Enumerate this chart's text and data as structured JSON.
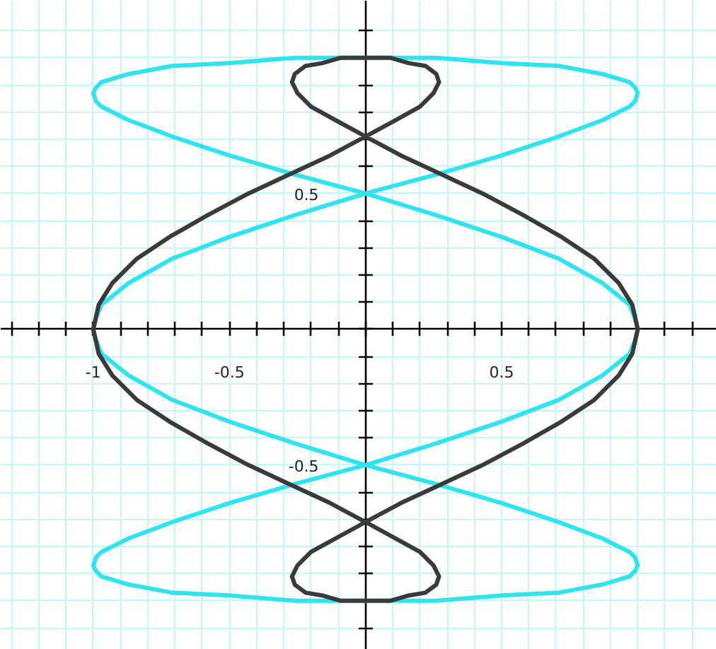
{
  "chart_data": {
    "type": "line",
    "xlim": [
      -1.34,
      1.29
    ],
    "ylim": [
      -1.18,
      1.21
    ],
    "xticks": [
      {
        "value": -1.3,
        "label": null
      },
      {
        "value": -1.2,
        "label": null
      },
      {
        "value": -1.1,
        "label": null
      },
      -1,
      {
        "value": -0.9,
        "label": null
      },
      {
        "value": -0.8,
        "label": null
      },
      {
        "value": -0.7,
        "label": null
      },
      {
        "value": -0.6,
        "label": null
      },
      -0.5,
      {
        "value": -0.4,
        "label": null
      },
      {
        "value": -0.3,
        "label": null
      },
      {
        "value": -0.2,
        "label": null
      },
      {
        "value": -0.1,
        "label": null
      },
      {
        "value": 0,
        "label": null
      },
      {
        "value": 0.1,
        "label": null
      },
      {
        "value": 0.2,
        "label": null
      },
      {
        "value": 0.3,
        "label": null
      },
      {
        "value": 0.4,
        "label": null
      },
      0.5,
      {
        "value": 0.6,
        "label": null
      },
      {
        "value": 0.7,
        "label": null
      },
      {
        "value": 0.8,
        "label": null
      },
      {
        "value": 0.9,
        "label": null
      },
      {
        "value": 1,
        "label": null
      },
      {
        "value": 1.1,
        "label": null
      },
      {
        "value": 1.2,
        "label": null
      }
    ],
    "yticks": [
      {
        "value": -1.1,
        "label": null
      },
      {
        "value": -1,
        "label": null
      },
      {
        "value": -0.9,
        "label": null
      },
      {
        "value": -0.8,
        "label": null
      },
      {
        "value": -0.7,
        "label": null
      },
      {
        "value": -0.6,
        "label": null
      },
      -0.5,
      {
        "value": -0.4,
        "label": null
      },
      {
        "value": -0.3,
        "label": null
      },
      {
        "value": -0.2,
        "label": null
      },
      {
        "value": -0.1,
        "label": null
      },
      {
        "value": 0,
        "label": null
      },
      {
        "value": 0.1,
        "label": null
      },
      {
        "value": 0.2,
        "label": null
      },
      {
        "value": 0.3,
        "label": null
      },
      {
        "value": 0.4,
        "label": null
      },
      0.5,
      {
        "value": 0.6,
        "label": null
      },
      {
        "value": 0.7,
        "label": null
      },
      {
        "value": 0.8,
        "label": null
      },
      {
        "value": 0.9,
        "label": null
      },
      {
        "value": 1,
        "label": null
      },
      {
        "value": 1.1,
        "label": null
      }
    ],
    "grid": true,
    "series": [
      {
        "color": "#2fe4ef",
        "x": [
          -1,
          -0.99,
          -0.97,
          -0.87,
          -0.71,
          -0.5,
          -0.26,
          0,
          0.26,
          0.5,
          0.71,
          0.87,
          0.97,
          0.99,
          1,
          null,
          1,
          0.99,
          0.97,
          0.87,
          0.71,
          0.5,
          0.26,
          0,
          -0.26,
          -0.5,
          -0.71,
          -0.87,
          -0.97,
          -0.99,
          -1,
          null,
          -1,
          -0.99,
          -0.97,
          -0.87,
          -0.71,
          -0.5,
          -0.26,
          0,
          0.26,
          0.5,
          0.71,
          0.87,
          0.97,
          0.99,
          1,
          null,
          1,
          0.99,
          0.97,
          0.87,
          0.71,
          0.5,
          0.26,
          0,
          -0.26,
          -0.5,
          -0.71,
          -0.87,
          -0.97,
          -0.99,
          -1,
          null,
          -1,
          -0.99,
          -0.97,
          -0.87,
          -0.71,
          -0.5,
          -0.26,
          0,
          0.26,
          0.5,
          0.71,
          0.87,
          0.97,
          0.99,
          1,
          null,
          1,
          0.99,
          0.97,
          0.87,
          0.71,
          0.5,
          0.26,
          0,
          -0.26,
          -0.5,
          -0.71,
          -0.87,
          -0.97,
          -0.99,
          -1
        ],
        "values": [
          0.87,
          0.89,
          0.91,
          0.94,
          0.97,
          0.98,
          1.0,
          1,
          1.0,
          0.98,
          0.97,
          0.94,
          0.91,
          0.89,
          0.87,
          null,
          0.87,
          0.84,
          0.82,
          0.77,
          0.71,
          0.64,
          0.57,
          0.5,
          0.42,
          0.34,
          0.26,
          0.17,
          0.09,
          0.04,
          0,
          null,
          0,
          -0.04,
          -0.09,
          -0.17,
          -0.26,
          -0.34,
          -0.42,
          -0.5,
          -0.57,
          -0.64,
          -0.71,
          -0.77,
          -0.82,
          -0.84,
          -0.87,
          null,
          -0.87,
          -0.89,
          -0.91,
          -0.94,
          -0.97,
          -0.98,
          -1.0,
          -1,
          -1.0,
          -0.98,
          -0.97,
          -0.94,
          -0.91,
          -0.89,
          -0.87,
          null,
          -0.87,
          -0.84,
          -0.82,
          -0.77,
          -0.71,
          -0.64,
          -0.57,
          -0.5,
          -0.42,
          -0.34,
          -0.26,
          -0.17,
          -0.09,
          -0.04,
          0,
          null,
          0,
          0.04,
          0.09,
          0.17,
          0.26,
          0.34,
          0.42,
          0.5,
          0.57,
          0.64,
          0.71,
          0.77,
          0.82,
          0.84,
          0.87
        ]
      },
      {
        "color": "#3a3a3a",
        "x": [
          -0.27,
          -0.26,
          -0.22,
          -0.16,
          -0.09,
          0,
          0.09,
          0.16,
          0.22,
          0.26,
          0.27,
          null,
          0.27,
          0.25,
          0.2,
          0.11,
          0,
          -0.13,
          -0.28,
          -0.43,
          -0.58,
          -0.72,
          -0.84,
          -0.93,
          -0.98,
          -1,
          null,
          -1,
          -0.98,
          -0.93,
          -0.84,
          -0.72,
          -0.58,
          -0.43,
          -0.28,
          -0.13,
          0,
          0.11,
          0.2,
          0.25,
          0.27,
          null,
          0.27,
          0.26,
          0.22,
          0.16,
          0.09,
          0,
          -0.09,
          -0.16,
          -0.22,
          -0.26,
          -0.27,
          null,
          -0.27,
          -0.25,
          -0.2,
          -0.11,
          0,
          0.13,
          0.28,
          0.43,
          0.58,
          0.72,
          0.84,
          0.93,
          0.98,
          1,
          null,
          1,
          0.98,
          0.93,
          0.84,
          0.72,
          0.58,
          0.43,
          0.28,
          0.13,
          0,
          -0.11,
          -0.2,
          -0.25,
          -0.27
        ],
        "values": [
          0.91,
          0.94,
          0.97,
          0.98,
          1.0,
          1,
          1.0,
          0.98,
          0.97,
          0.94,
          0.91,
          null,
          0.91,
          0.87,
          0.82,
          0.77,
          0.71,
          0.64,
          0.57,
          0.5,
          0.42,
          0.34,
          0.26,
          0.17,
          0.09,
          0,
          null,
          0,
          -0.09,
          -0.17,
          -0.26,
          -0.34,
          -0.42,
          -0.5,
          -0.57,
          -0.64,
          -0.71,
          -0.77,
          -0.82,
          -0.87,
          -0.91,
          null,
          -0.91,
          -0.94,
          -0.97,
          -0.98,
          -1.0,
          -1,
          -1.0,
          -0.98,
          -0.97,
          -0.94,
          -0.91,
          null,
          -0.91,
          -0.87,
          -0.82,
          -0.77,
          -0.71,
          -0.64,
          -0.57,
          -0.5,
          -0.42,
          -0.34,
          -0.26,
          -0.17,
          -0.09,
          0,
          null,
          0,
          0.09,
          0.17,
          0.26,
          0.34,
          0.42,
          0.5,
          0.57,
          0.64,
          0.71,
          0.77,
          0.82,
          0.87,
          0.91
        ]
      }
    ]
  }
}
